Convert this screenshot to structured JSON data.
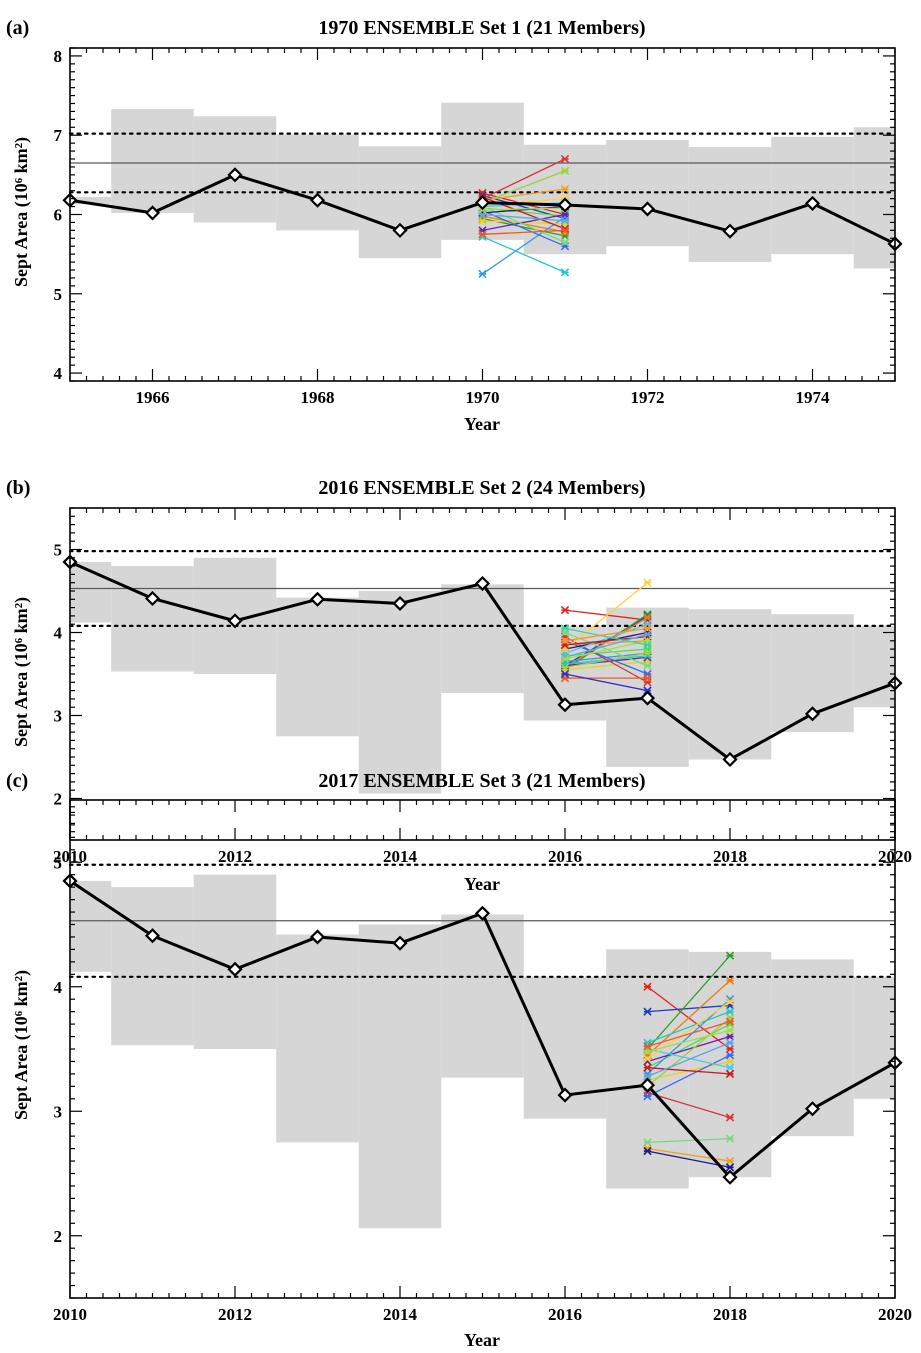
{
  "colors": {
    "background": "#ffffff",
    "envelope_band": "#d6d6d6",
    "observed_line": "#000000",
    "climatology_line": "#5a5a5a",
    "dotted_bounds": "#000000"
  },
  "chart_data": [
    {
      "panel": "(a)",
      "type": "line",
      "title": "1970 ENSEMBLE Set 1 (21 Members)",
      "xlabel": "Year",
      "ylabel": "Sept Area (10⁶ km²)",
      "xlim": [
        1965,
        1975
      ],
      "ylim": [
        3.9,
        8.1
      ],
      "xticks": [
        1966,
        1968,
        1970,
        1972,
        1974
      ],
      "yticks": [
        4,
        5,
        6,
        7,
        8
      ],
      "grid": false,
      "legend": "none",
      "reference_lines": {
        "climatology_mean": 6.65,
        "upper_dotted": 7.02,
        "lower_dotted": 6.28
      },
      "envelope": [
        {
          "from": 1964.5,
          "to": 1965.5,
          "low": 6.13,
          "high": 6.22
        },
        {
          "from": 1965.5,
          "to": 1966.5,
          "low": 6.02,
          "high": 7.33
        },
        {
          "from": 1966.5,
          "to": 1967.5,
          "low": 5.9,
          "high": 7.24
        },
        {
          "from": 1967.5,
          "to": 1968.5,
          "low": 5.8,
          "high": 7.01
        },
        {
          "from": 1968.5,
          "to": 1969.5,
          "low": 5.45,
          "high": 6.86
        },
        {
          "from": 1969.5,
          "to": 1970.5,
          "low": 5.68,
          "high": 7.41
        },
        {
          "from": 1970.5,
          "to": 1971.5,
          "low": 5.5,
          "high": 6.88
        },
        {
          "from": 1971.5,
          "to": 1972.5,
          "low": 5.6,
          "high": 6.94
        },
        {
          "from": 1972.5,
          "to": 1973.5,
          "low": 5.4,
          "high": 6.85
        },
        {
          "from": 1973.5,
          "to": 1974.5,
          "low": 5.5,
          "high": 6.98
        },
        {
          "from": 1974.5,
          "to": 1975.5,
          "low": 5.32,
          "high": 7.1
        }
      ],
      "observed": {
        "x": [
          1965,
          1966,
          1967,
          1968,
          1969,
          1970,
          1971,
          1972,
          1973,
          1974,
          1975
        ],
        "y": [
          6.18,
          6.02,
          6.5,
          6.18,
          5.8,
          6.15,
          6.12,
          6.07,
          5.79,
          6.14,
          5.63
        ]
      },
      "ensemble": {
        "x": [
          1970,
          1971
        ],
        "members": [
          [
            6.27,
            6.0
          ],
          [
            6.24,
            5.95
          ],
          [
            5.95,
            5.73
          ],
          [
            5.98,
            5.78
          ],
          [
            6.08,
            5.98
          ],
          [
            5.25,
            5.97
          ],
          [
            5.92,
            5.88
          ],
          [
            5.8,
            6.0
          ],
          [
            5.72,
            5.27
          ],
          [
            6.15,
            6.55
          ],
          [
            6.2,
            6.7
          ],
          [
            6.05,
            5.6
          ],
          [
            6.1,
            5.65
          ],
          [
            6.18,
            6.32
          ],
          [
            6.02,
            6.1
          ],
          [
            6.1,
            6.15
          ],
          [
            6.12,
            6.2
          ],
          [
            6.22,
            5.82
          ],
          [
            6.0,
            5.92
          ],
          [
            6.06,
            6.08
          ],
          [
            5.75,
            5.8
          ]
        ]
      }
    },
    {
      "panel": "(b)",
      "type": "line",
      "title": "2016 ENSEMBLE Set 2 (24 Members)",
      "xlabel": "Year",
      "ylabel": "Sept Area (10⁶ km²)",
      "xlim": [
        2010,
        2020
      ],
      "ylim": [
        1.5,
        5.5
      ],
      "xticks": [
        2010,
        2012,
        2014,
        2016,
        2018,
        2020
      ],
      "yticks": [
        2,
        3,
        4,
        5
      ],
      "grid": false,
      "legend": "none",
      "reference_lines": {
        "climatology_mean": 4.53,
        "upper_dotted": 4.98,
        "lower_dotted": 4.08
      },
      "envelope": [
        {
          "from": 2009.5,
          "to": 2010.5,
          "low": 4.12,
          "high": 4.85
        },
        {
          "from": 2010.5,
          "to": 2011.5,
          "low": 3.53,
          "high": 4.8
        },
        {
          "from": 2011.5,
          "to": 2012.5,
          "low": 3.5,
          "high": 4.9
        },
        {
          "from": 2012.5,
          "to": 2013.5,
          "low": 2.75,
          "high": 4.42
        },
        {
          "from": 2013.5,
          "to": 2014.5,
          "low": 2.06,
          "high": 4.5
        },
        {
          "from": 2014.5,
          "to": 2015.5,
          "low": 3.27,
          "high": 4.58
        },
        {
          "from": 2015.5,
          "to": 2016.5,
          "low": 2.94,
          "high": 4.08
        },
        {
          "from": 2016.5,
          "to": 2017.5,
          "low": 2.38,
          "high": 4.3
        },
        {
          "from": 2017.5,
          "to": 2018.5,
          "low": 2.47,
          "high": 4.28
        },
        {
          "from": 2018.5,
          "to": 2019.5,
          "low": 2.8,
          "high": 4.22
        },
        {
          "from": 2019.5,
          "to": 2020.5,
          "low": 3.1,
          "high": 4.08
        }
      ],
      "observed": {
        "x": [
          2010,
          2011,
          2012,
          2013,
          2014,
          2015,
          2016,
          2017,
          2018,
          2019,
          2020
        ],
        "y": [
          4.85,
          4.41,
          4.14,
          4.4,
          4.35,
          4.59,
          3.13,
          3.21,
          2.47,
          3.02,
          3.39
        ]
      },
      "ensemble": {
        "x": [
          2016,
          2017
        ],
        "members": [
          [
            4.27,
            4.15
          ],
          [
            3.6,
            4.2
          ],
          [
            3.55,
            4.22
          ],
          [
            3.58,
            4.18
          ],
          [
            3.72,
            3.8
          ],
          [
            3.65,
            3.75
          ],
          [
            3.55,
            3.65
          ],
          [
            3.6,
            3.7
          ],
          [
            3.62,
            3.72
          ],
          [
            3.58,
            3.75
          ],
          [
            3.95,
            3.4
          ],
          [
            3.9,
            3.5
          ],
          [
            4.0,
            3.6
          ],
          [
            3.85,
            3.9
          ],
          [
            3.8,
            4.0
          ],
          [
            3.75,
            4.1
          ],
          [
            3.8,
            4.6
          ],
          [
            3.85,
            3.95
          ],
          [
            3.7,
            3.98
          ],
          [
            3.68,
            3.9
          ],
          [
            3.45,
            3.45
          ],
          [
            3.5,
            3.3
          ],
          [
            4.05,
            3.85
          ],
          [
            3.9,
            4.05
          ]
        ]
      }
    },
    {
      "panel": "(c)",
      "type": "line",
      "title": "2017 ENSEMBLE Set 3 (21 Members)",
      "xlabel": "Year",
      "ylabel": "Sept Area (10⁶ km²)",
      "xlim": [
        2010,
        2020
      ],
      "ylim": [
        1.5,
        5.5
      ],
      "xticks": [
        2010,
        2012,
        2014,
        2016,
        2018,
        2020
      ],
      "yticks": [
        2,
        3,
        4,
        5
      ],
      "grid": false,
      "legend": "none",
      "reference_lines": {
        "climatology_mean": 4.53,
        "upper_dotted": 4.98,
        "lower_dotted": 4.08
      },
      "envelope": [
        {
          "from": 2009.5,
          "to": 2010.5,
          "low": 4.12,
          "high": 4.85
        },
        {
          "from": 2010.5,
          "to": 2011.5,
          "low": 3.53,
          "high": 4.8
        },
        {
          "from": 2011.5,
          "to": 2012.5,
          "low": 3.5,
          "high": 4.9
        },
        {
          "from": 2012.5,
          "to": 2013.5,
          "low": 2.75,
          "high": 4.42
        },
        {
          "from": 2013.5,
          "to": 2014.5,
          "low": 2.06,
          "high": 4.5
        },
        {
          "from": 2014.5,
          "to": 2015.5,
          "low": 3.27,
          "high": 4.58
        },
        {
          "from": 2015.5,
          "to": 2016.5,
          "low": 2.94,
          "high": 4.08
        },
        {
          "from": 2016.5,
          "to": 2017.5,
          "low": 2.38,
          "high": 4.3
        },
        {
          "from": 2017.5,
          "to": 2018.5,
          "low": 2.47,
          "high": 4.28
        },
        {
          "from": 2018.5,
          "to": 2019.5,
          "low": 2.8,
          "high": 4.22
        },
        {
          "from": 2019.5,
          "to": 2020.5,
          "low": 3.1,
          "high": 4.08
        }
      ],
      "observed": {
        "x": [
          2010,
          2011,
          2012,
          2013,
          2014,
          2015,
          2016,
          2017,
          2018,
          2019,
          2020
        ],
        "y": [
          4.85,
          4.41,
          4.14,
          4.4,
          4.35,
          4.59,
          3.13,
          3.21,
          2.47,
          3.02,
          3.39
        ]
      },
      "ensemble": {
        "x": [
          2017,
          2018
        ],
        "members": [
          [
            4.0,
            3.5
          ],
          [
            3.8,
            3.85
          ],
          [
            3.5,
            4.25
          ],
          [
            3.45,
            4.05
          ],
          [
            3.35,
            3.7
          ],
          [
            3.3,
            3.9
          ],
          [
            3.25,
            3.4
          ],
          [
            3.4,
            3.6
          ],
          [
            3.55,
            3.8
          ],
          [
            3.2,
            3.75
          ],
          [
            3.15,
            2.95
          ],
          [
            3.12,
            3.45
          ],
          [
            2.75,
            2.78
          ],
          [
            2.7,
            2.6
          ],
          [
            2.68,
            2.55
          ],
          [
            3.5,
            3.35
          ],
          [
            3.42,
            3.88
          ],
          [
            3.35,
            3.3
          ],
          [
            3.28,
            3.55
          ],
          [
            3.48,
            3.65
          ],
          [
            3.52,
            3.72
          ]
        ]
      }
    }
  ]
}
